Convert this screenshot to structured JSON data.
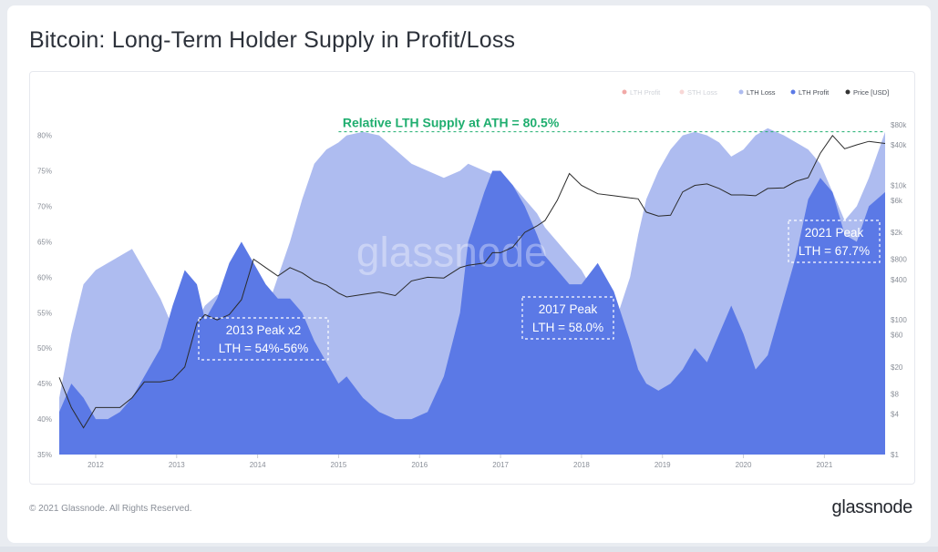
{
  "page": {
    "title": "Bitcoin: Long-Term Holder Supply in Profit/Loss",
    "copyright": "© 2021 Glassnode. All Rights Reserved.",
    "brand": "glassnode",
    "watermark": "glassnode"
  },
  "chart_data": {
    "type": "area",
    "legend_position": "top-right",
    "legend": [
      {
        "label": "LTH Profit",
        "color": "#e0413c",
        "faded": true
      },
      {
        "label": "STH Loss",
        "color": "#f0a6a3",
        "faded": true
      },
      {
        "label": "LTH Loss",
        "color": "#aebcf0",
        "faded": false
      },
      {
        "label": "LTH Profit",
        "color": "#5b79e6",
        "faded": false
      },
      {
        "label": "Price [USD]",
        "color": "#333333",
        "faded": false
      }
    ],
    "x_ticks": [
      "2012",
      "2013",
      "2014",
      "2015",
      "2016",
      "2017",
      "2018",
      "2019",
      "2020",
      "2021"
    ],
    "x_range": [
      2011.55,
      2021.75
    ],
    "y_left": {
      "ticks": [
        "35%",
        "40%",
        "45%",
        "50%",
        "55%",
        "60%",
        "65%",
        "70%",
        "75%",
        "80%"
      ],
      "range": [
        35,
        82
      ]
    },
    "y_right": {
      "ticks": [
        "$1",
        "$4",
        "$8",
        "$20",
        "$60",
        "$100",
        "$400",
        "$800",
        "$2k",
        "$6k",
        "$10k",
        "$40k",
        "$80k"
      ],
      "tick_values": [
        1,
        4,
        8,
        20,
        60,
        100,
        400,
        800,
        2000,
        6000,
        10000,
        40000,
        80000
      ],
      "scale": "log"
    },
    "series": [
      {
        "name": "LTH Loss",
        "color": "#aebcf0",
        "x": [
          2011.55,
          2011.7,
          2011.85,
          2012.0,
          2012.15,
          2012.3,
          2012.45,
          2012.6,
          2012.8,
          2012.95,
          2013.1,
          2013.25,
          2013.35,
          2013.5,
          2013.65,
          2013.8,
          2013.95,
          2014.1,
          2014.25,
          2014.4,
          2014.55,
          2014.7,
          2014.85,
          2015.0,
          2015.1,
          2015.3,
          2015.5,
          2015.7,
          2015.9,
          2016.1,
          2016.3,
          2016.5,
          2016.6,
          2016.8,
          2016.9,
          2017.0,
          2017.15,
          2017.3,
          2017.45,
          2017.55,
          2017.7,
          2017.85,
          2018.0,
          2018.2,
          2018.4,
          2018.6,
          2018.7,
          2018.8,
          2018.95,
          2019.1,
          2019.25,
          2019.4,
          2019.55,
          2019.7,
          2019.85,
          2020.0,
          2020.15,
          2020.3,
          2020.5,
          2020.65,
          2020.8,
          2020.95,
          2021.1,
          2021.25,
          2021.4,
          2021.55,
          2021.75
        ],
        "values": [
          43,
          52,
          59,
          61,
          62,
          63,
          64,
          61,
          57,
          53,
          51,
          54,
          56,
          57.5,
          58,
          57,
          56,
          55,
          60,
          65,
          71,
          76,
          78,
          79,
          80,
          80.5,
          80,
          78,
          76,
          75,
          74,
          75,
          76,
          75,
          74.5,
          74,
          73,
          71,
          69,
          67,
          65,
          63,
          61,
          57,
          53,
          60,
          66,
          71,
          75,
          78,
          80,
          80.5,
          80,
          79,
          77,
          78,
          80,
          81,
          80,
          79,
          78,
          76,
          72,
          68,
          70,
          74,
          80.5
        ]
      },
      {
        "name": "LTH Profit",
        "color": "#5b79e6",
        "x": [
          2011.55,
          2011.7,
          2011.85,
          2012.0,
          2012.15,
          2012.3,
          2012.45,
          2012.6,
          2012.8,
          2012.95,
          2013.1,
          2013.25,
          2013.35,
          2013.5,
          2013.65,
          2013.8,
          2013.95,
          2014.1,
          2014.25,
          2014.4,
          2014.55,
          2014.7,
          2014.85,
          2015.0,
          2015.1,
          2015.3,
          2015.5,
          2015.7,
          2015.9,
          2016.1,
          2016.3,
          2016.5,
          2016.6,
          2016.8,
          2016.9,
          2017.0,
          2017.15,
          2017.3,
          2017.45,
          2017.55,
          2017.7,
          2017.85,
          2018.0,
          2018.2,
          2018.4,
          2018.6,
          2018.7,
          2018.8,
          2018.95,
          2019.1,
          2019.25,
          2019.4,
          2019.55,
          2019.7,
          2019.85,
          2020.0,
          2020.15,
          2020.3,
          2020.5,
          2020.65,
          2020.8,
          2020.95,
          2021.1,
          2021.25,
          2021.4,
          2021.55,
          2021.75
        ],
        "values": [
          41,
          45,
          43,
          40,
          40,
          41,
          43,
          46,
          50,
          56,
          61,
          59,
          54,
          57,
          62,
          65,
          62,
          59,
          57,
          57,
          55,
          51,
          48,
          45,
          46,
          43,
          41,
          40,
          40,
          41,
          46,
          55,
          65,
          72,
          75,
          75,
          73,
          70,
          66,
          63,
          61,
          59,
          59,
          62,
          58,
          51,
          47,
          45,
          44,
          45,
          47,
          50,
          48,
          52,
          56,
          52,
          47,
          49,
          57,
          63,
          71,
          74,
          72,
          66,
          65,
          70,
          72
        ]
      },
      {
        "name": "Price [USD]",
        "color": "#2b2b2b",
        "axis": "right",
        "x": [
          2011.55,
          2011.7,
          2011.85,
          2012.0,
          2012.15,
          2012.3,
          2012.45,
          2012.6,
          2012.8,
          2012.95,
          2013.1,
          2013.25,
          2013.35,
          2013.5,
          2013.65,
          2013.8,
          2013.95,
          2014.1,
          2014.25,
          2014.4,
          2014.55,
          2014.7,
          2014.85,
          2015.0,
          2015.1,
          2015.3,
          2015.5,
          2015.7,
          2015.9,
          2016.1,
          2016.3,
          2016.5,
          2016.6,
          2016.8,
          2016.9,
          2017.0,
          2017.15,
          2017.3,
          2017.45,
          2017.55,
          2017.7,
          2017.85,
          2018.0,
          2018.2,
          2018.4,
          2018.6,
          2018.7,
          2018.8,
          2018.95,
          2019.1,
          2019.25,
          2019.4,
          2019.55,
          2019.7,
          2019.85,
          2020.0,
          2020.15,
          2020.3,
          2020.5,
          2020.65,
          2020.8,
          2020.95,
          2021.1,
          2021.25,
          2021.4,
          2021.55,
          2021.75
        ],
        "values": [
          14,
          5,
          2.5,
          5,
          5,
          5,
          7,
          12,
          12,
          13,
          20,
          90,
          120,
          100,
          120,
          200,
          800,
          600,
          450,
          600,
          500,
          380,
          330,
          250,
          220,
          240,
          260,
          230,
          380,
          430,
          420,
          600,
          650,
          700,
          1000,
          1000,
          1200,
          2000,
          2500,
          3000,
          6000,
          15000,
          10000,
          7500,
          7000,
          6500,
          6300,
          4000,
          3500,
          3600,
          8000,
          10000,
          10500,
          9000,
          7200,
          7200,
          7000,
          9000,
          9200,
          11500,
          13000,
          30000,
          55000,
          35000,
          40000,
          45000,
          42000
        ]
      }
    ],
    "reference_line": {
      "label": "Relative LTH Supply at ATH = 80.5%",
      "value": 80.5,
      "color": "#1fae6f"
    },
    "annotations": [
      {
        "lines": [
          "2013 Peak x2",
          "LTH = 54%-56%"
        ],
        "x": 2013.35,
        "y": 54.5
      },
      {
        "lines": [
          "2017 Peak",
          "LTH = 58.0%"
        ],
        "x": 2017.3,
        "y": 58.0
      },
      {
        "lines": [
          "2021 Peak",
          "LTH = 67.7%"
        ],
        "x": 2020.6,
        "y": 67.7
      }
    ]
  }
}
